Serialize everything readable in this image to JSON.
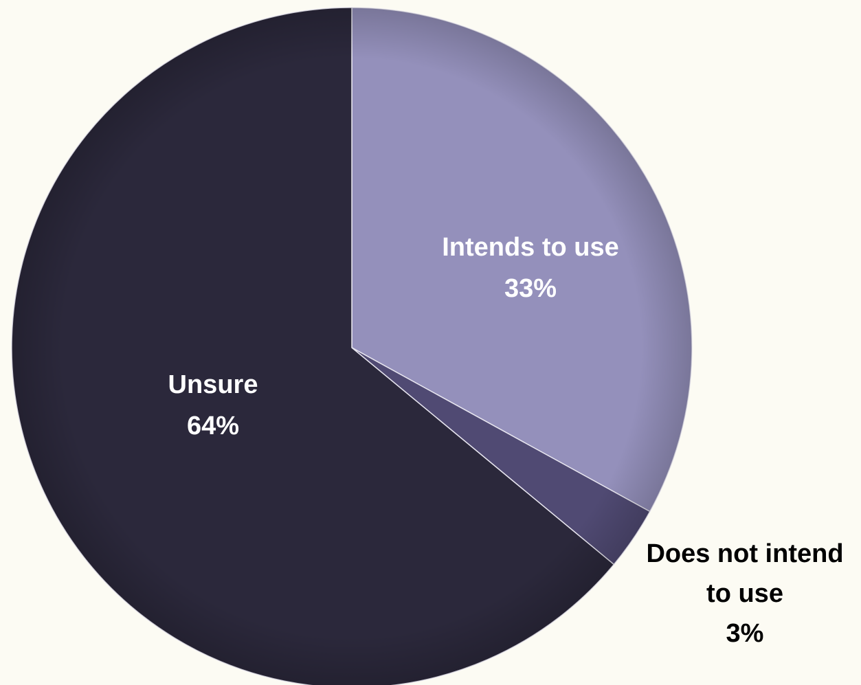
{
  "chart_data": {
    "type": "pie",
    "slices": [
      {
        "label": "Intends to use",
        "value": 33,
        "display": "33%",
        "color": "#9490bb",
        "label_color": "#ffffff"
      },
      {
        "label": "Does not intend to use",
        "value": 3,
        "display": "3%",
        "color": "#504a73",
        "label_color": "#000000",
        "label_lines": [
          "Does not intend",
          "to use"
        ]
      },
      {
        "label": "Unsure",
        "value": 64,
        "display": "64%",
        "color": "#2b283b",
        "label_color": "#ffffff"
      }
    ],
    "start_angle_deg": 0,
    "direction": "clockwise",
    "label_placement": [
      "inside",
      "outside-bottom-right",
      "inside"
    ]
  }
}
